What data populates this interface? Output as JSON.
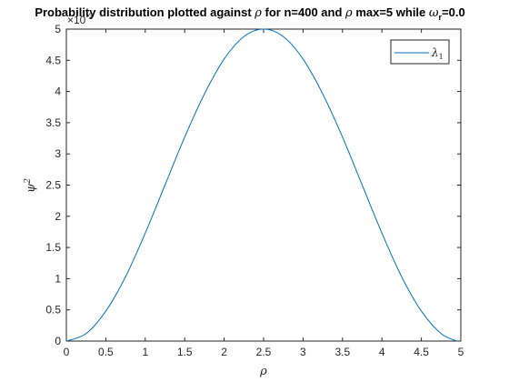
{
  "chart_data": {
    "type": "line",
    "title": {
      "prefix": "Probability distribution plotted against ",
      "rho_symbol": "ρ",
      "middle1": " for n=400 and ",
      "rho_symbol2": "ρ",
      "middle2": " max=5 while ",
      "omega_symbol": "ω",
      "omega_sub": "r",
      "suffix": "=0.0"
    },
    "xlabel": "ρ",
    "ylabel": {
      "base": "ψ",
      "sup": "2"
    },
    "xlim": [
      0,
      5
    ],
    "ylim": [
      0,
      0.005
    ],
    "y_exponent_label": {
      "base": "×10",
      "sup": "-3"
    },
    "xticks": [
      0,
      0.5,
      1,
      1.5,
      2,
      2.5,
      3,
      3.5,
      4,
      4.5,
      5
    ],
    "xtick_labels": [
      "0",
      "0.5",
      "1",
      "1.5",
      "2",
      "2.5",
      "3",
      "3.5",
      "4",
      "4.5",
      "5"
    ],
    "yticks": [
      0,
      0.5,
      1,
      1.5,
      2,
      2.5,
      3,
      3.5,
      4,
      4.5,
      5
    ],
    "ytick_labels": [
      "0",
      "0.5",
      "1",
      "1.5",
      "2",
      "2.5",
      "3",
      "3.5",
      "4",
      "4.5",
      "5"
    ],
    "grid": false,
    "legend_position": "top-right",
    "series": [
      {
        "name": {
          "base": "λ",
          "sub": "1"
        },
        "color": "#0072BD",
        "x": [
          0,
          0.25,
          0.5,
          0.75,
          1,
          1.25,
          1.5,
          1.75,
          2,
          2.25,
          2.5,
          2.75,
          3,
          3.25,
          3.5,
          3.75,
          4,
          4.25,
          4.5,
          4.75,
          4.95
        ],
        "y": [
          0,
          0.00012,
          0.00048,
          0.00103,
          0.00173,
          0.0025,
          0.00327,
          0.00396,
          0.00452,
          0.00488,
          0.005,
          0.00488,
          0.00452,
          0.00396,
          0.00327,
          0.0025,
          0.00173,
          0.00103,
          0.00048,
          0.00012,
          0
        ]
      }
    ]
  }
}
